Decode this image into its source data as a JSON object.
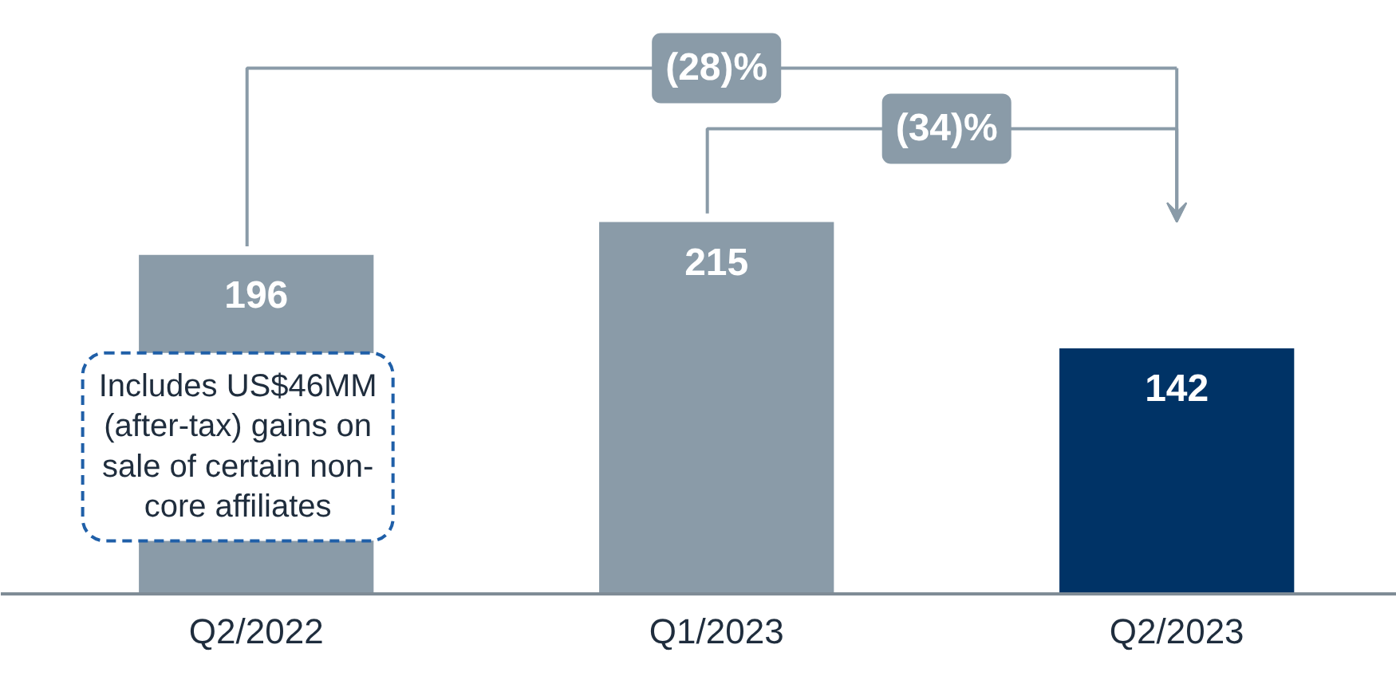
{
  "chart_data": {
    "type": "bar",
    "categories": [
      "Q2/2022",
      "Q1/2023",
      "Q2/2023"
    ],
    "values": [
      196,
      215,
      142
    ],
    "colors": [
      "#8a9ba8",
      "#8a9ba8",
      "#003366"
    ],
    "data_labels": true,
    "grid": false,
    "annotations": [
      "(28)%",
      "(34)%",
      "Includes US$46MM (after-tax) gains on sale of certain non-core affiliates"
    ]
  }
}
